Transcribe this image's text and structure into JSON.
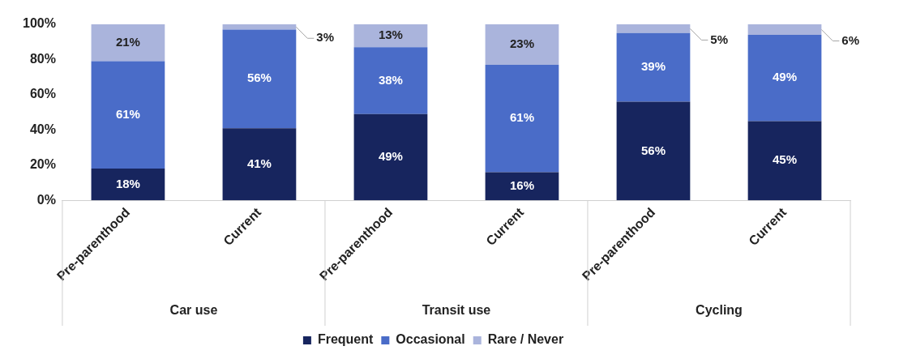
{
  "chart_data": {
    "type": "bar",
    "stacked": true,
    "categories": [
      "Pre-parenthood",
      "Current",
      "Pre-parenthood",
      "Current",
      "Pre-parenthood",
      "Current"
    ],
    "annotations": [
      "Car use",
      "Transit use",
      "Cycling"
    ],
    "series": [
      {
        "name": "Frequent",
        "color": "#17255e",
        "values": [
          18,
          41,
          49,
          16,
          56,
          45
        ],
        "value_labels": [
          "18%",
          "41%",
          "49%",
          "16%",
          "56%",
          "45%"
        ]
      },
      {
        "name": "Occasional",
        "color": "#4a6cc8",
        "values": [
          61,
          56,
          38,
          61,
          39,
          49
        ],
        "value_labels": [
          "61%",
          "56%",
          "38%",
          "61%",
          "39%",
          "49%"
        ]
      },
      {
        "name": "Rare / Never",
        "color": "#aab4dc",
        "values": [
          21,
          3,
          13,
          23,
          5,
          6
        ],
        "value_labels": [
          "21%",
          "3%",
          "13%",
          "23%",
          "5%",
          "6%"
        ]
      }
    ],
    "ylim": [
      0,
      100
    ],
    "yticks": [
      {
        "value": 0,
        "label": "0%"
      },
      {
        "value": 20,
        "label": "20%"
      },
      {
        "value": 40,
        "label": "40%"
      },
      {
        "value": 60,
        "label": "60%"
      },
      {
        "value": 80,
        "label": "80%"
      },
      {
        "value": 100,
        "label": "100%"
      }
    ],
    "grid": false,
    "legend": "bottom"
  }
}
